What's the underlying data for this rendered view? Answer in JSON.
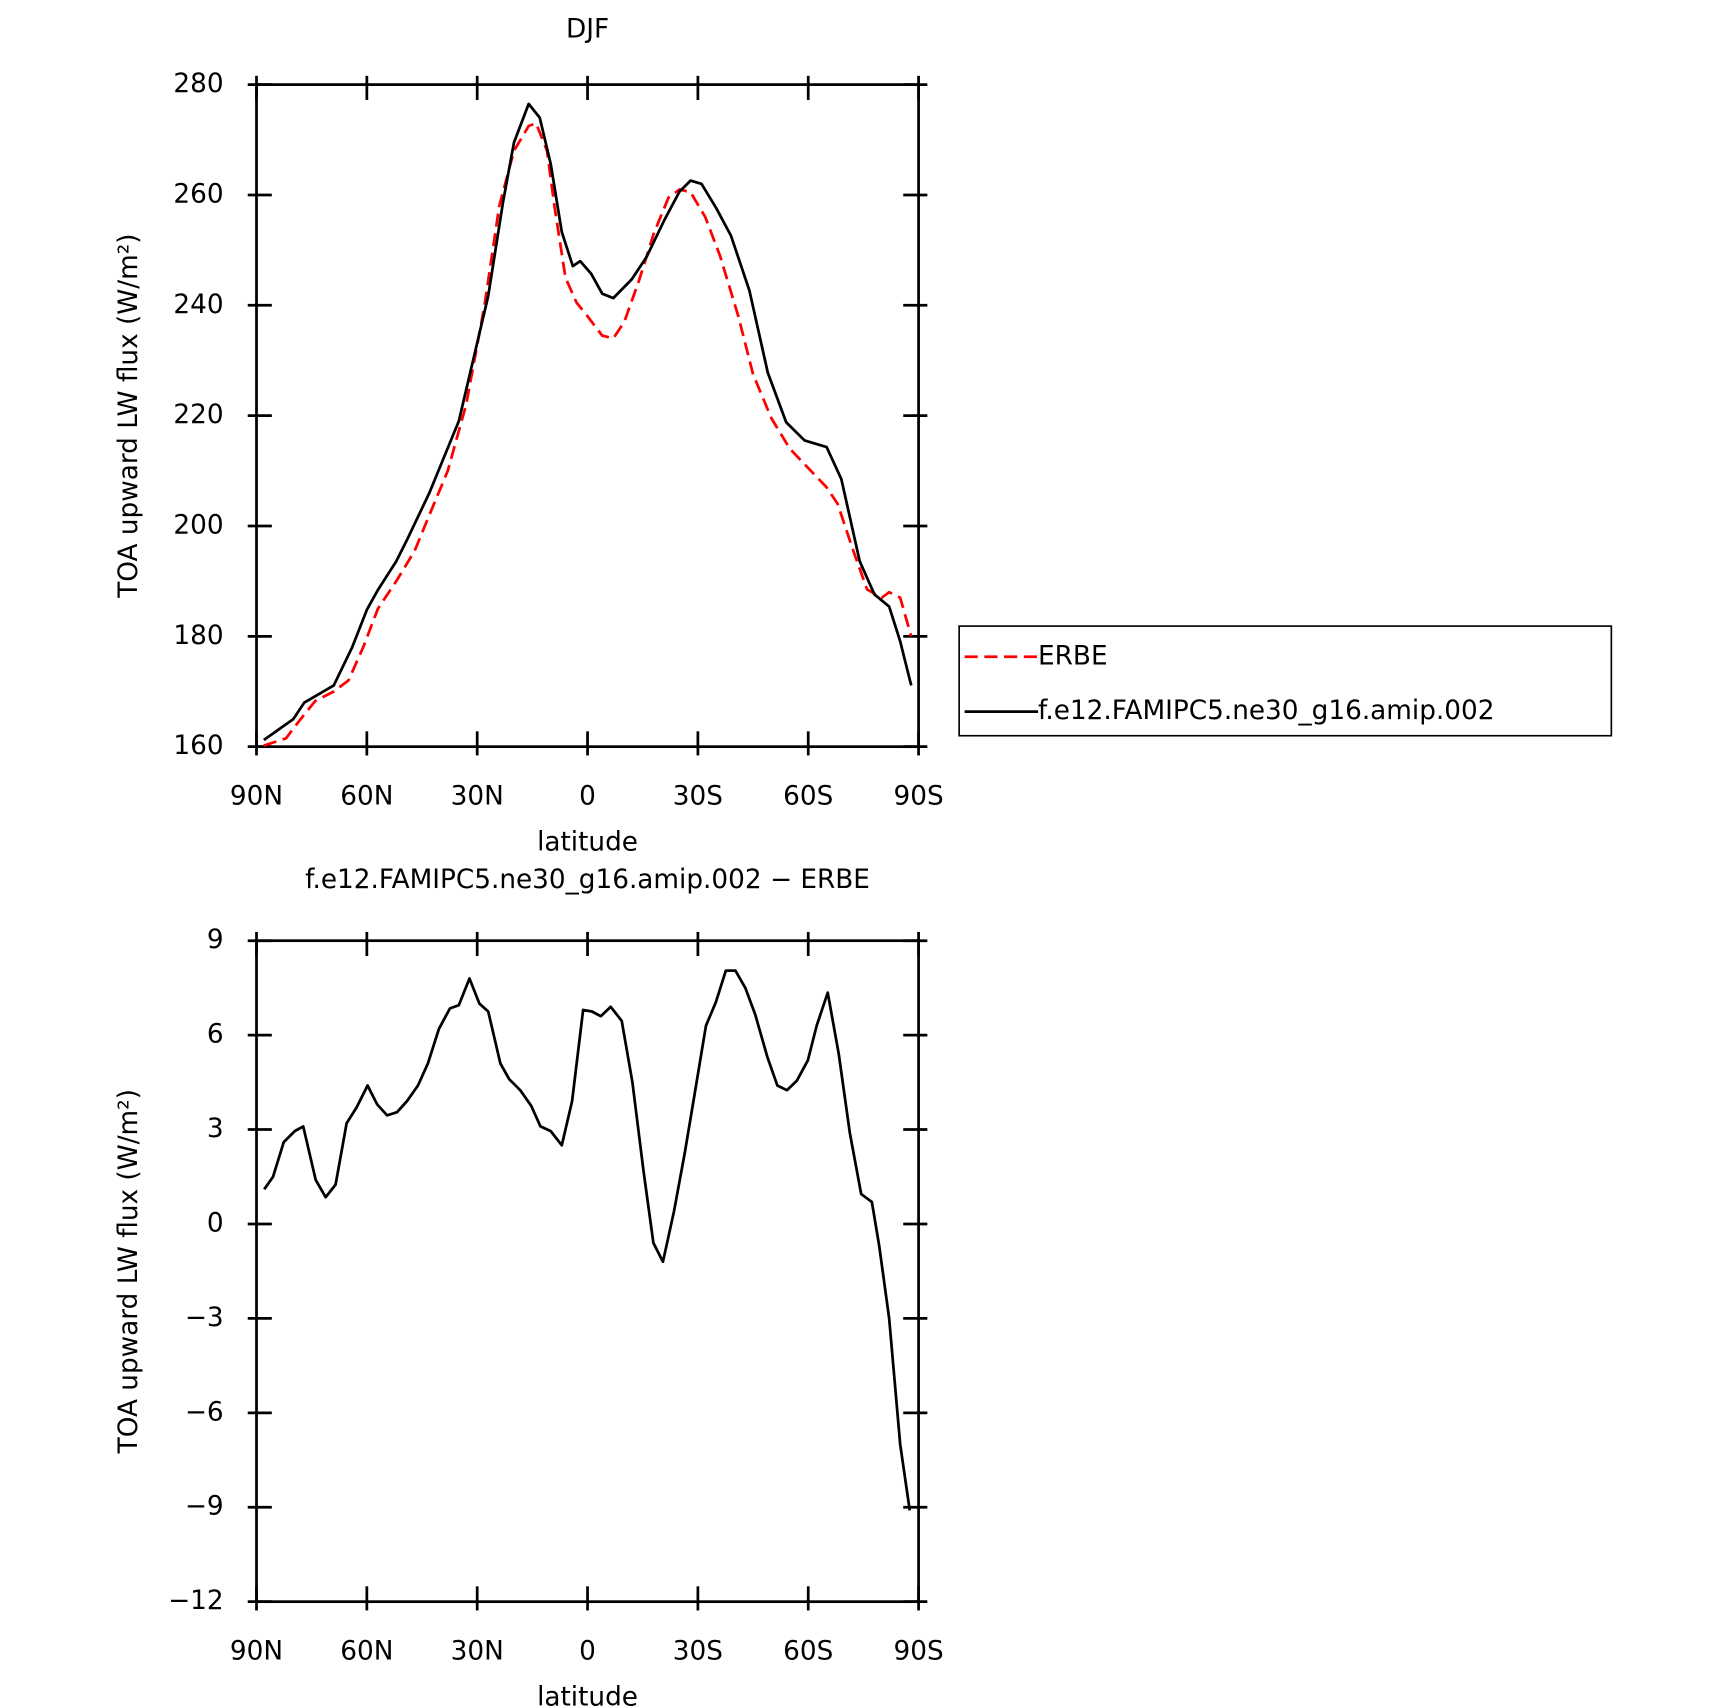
{
  "chart_data": [
    {
      "type": "line",
      "title": "DJF",
      "xlabel": "latitude",
      "ylabel": "TOA upward LW flux (W/m²)",
      "xlim": [
        90,
        -90
      ],
      "ylim": [
        160,
        280
      ],
      "xticks": [
        {
          "value": 90,
          "label": "90N"
        },
        {
          "value": 60,
          "label": "60N"
        },
        {
          "value": 30,
          "label": "30N"
        },
        0,
        {
          "value": -30,
          "label": "30S"
        },
        {
          "value": -60,
          "label": "60S"
        },
        {
          "value": -90,
          "label": "90S"
        }
      ],
      "yticks": [
        160,
        180,
        200,
        220,
        240,
        260,
        280
      ],
      "legend": "right",
      "series": [
        {
          "name": "ERBE",
          "color": "#ff0000",
          "style": "dashed",
          "x": [
            88,
            82,
            78,
            74,
            69,
            65,
            61,
            57,
            52,
            47,
            43,
            38,
            33,
            28,
            24,
            20,
            16,
            14,
            11,
            9,
            6,
            3,
            0,
            -4,
            -7,
            -10,
            -14,
            -18,
            -22,
            -25,
            -28,
            -32,
            -36,
            -41,
            -45,
            -50,
            -55,
            -60,
            -65,
            -68,
            -72,
            -76,
            -80,
            -82,
            -85,
            -88
          ],
          "values": [
            160.2,
            161.5,
            165,
            168.3,
            170,
            172,
            178,
            185,
            190,
            195.5,
            202,
            210,
            222,
            240,
            258,
            268,
            272.5,
            273,
            268,
            258,
            245,
            240.5,
            238,
            234.5,
            234,
            237,
            244.5,
            253,
            259.5,
            261,
            260.5,
            256,
            249,
            238,
            227.5,
            219.5,
            214,
            210.5,
            207,
            204,
            196,
            188.5,
            187,
            188,
            187,
            180
          ]
        },
        {
          "name": "f.e12.FAMIPC5.ne30_g16.amip.002",
          "color": "#000000",
          "style": "solid",
          "x": [
            88,
            80,
            77,
            69,
            64,
            60,
            57,
            52,
            49,
            43,
            35,
            27,
            23,
            20,
            16,
            13,
            10,
            7,
            4,
            2,
            -1,
            -4,
            -7,
            -12,
            -16,
            -21,
            -25,
            -28,
            -31,
            -35,
            -39,
            -44,
            -49,
            -54,
            -59,
            -65,
            -69,
            -74,
            -78,
            -82,
            -85,
            -88
          ],
          "values": [
            161.2,
            165,
            168,
            171.1,
            178,
            184.8,
            188.4,
            193.6,
            197.6,
            206,
            219,
            241.7,
            258.6,
            269.5,
            276.5,
            274,
            265.6,
            253.3,
            247.1,
            248,
            245.7,
            242.1,
            241.3,
            244.7,
            248.7,
            255.6,
            260.6,
            262.6,
            262,
            257.6,
            252.6,
            242.7,
            227.8,
            218.8,
            215.5,
            214.3,
            208.5,
            193.6,
            187.6,
            185.4,
            179.1,
            171.1
          ]
        }
      ]
    },
    {
      "type": "line",
      "title": "f.e12.FAMIPC5.ne30_g16.amip.002 − ERBE",
      "xlabel": "latitude",
      "ylabel": "TOA upward LW flux (W/m²)",
      "xlim": [
        90,
        -90
      ],
      "ylim": [
        -12,
        9
      ],
      "xticks": [
        {
          "value": 90,
          "label": "90N"
        },
        {
          "value": 60,
          "label": "60N"
        },
        {
          "value": 30,
          "label": "30N"
        },
        0,
        {
          "value": -30,
          "label": "30S"
        },
        {
          "value": -60,
          "label": "60S"
        },
        {
          "value": -90,
          "label": "90S"
        }
      ],
      "yticks": [
        {
          "value": -12,
          "label": "−12"
        },
        {
          "value": -9,
          "label": "−9"
        },
        {
          "value": -6,
          "label": "−6"
        },
        {
          "value": -3,
          "label": "−3"
        },
        0,
        3,
        6,
        9
      ],
      "series": [
        {
          "color": "#000000",
          "style": "solid",
          "x": [
            87.9,
            85.5,
            82.6,
            79.6,
            77.3,
            73.9,
            71.2,
            68.5,
            65.5,
            62.8,
            59.8,
            57.2,
            54.5,
            51.8,
            49.1,
            46.1,
            43.4,
            40.4,
            37.4,
            35.0,
            32.1,
            29.4,
            27.0,
            23.7,
            21.3,
            18.3,
            15.3,
            12.8,
            10.0,
            7.0,
            4.2,
            1.2,
            -1.2,
            -3.6,
            -6.3,
            -9.3,
            -12.2,
            -15.2,
            -17.9,
            -20.5,
            -23.5,
            -26.5,
            -29.5,
            -32.2,
            -34.9,
            -37.6,
            -40.2,
            -42.9,
            -45.6,
            -48.9,
            -51.6,
            -54.2,
            -56.9,
            -59.9,
            -62.3,
            -65.3,
            -68.3,
            -71.3,
            -74.4,
            -77.3,
            -79.3,
            -82.0,
            -85.0,
            -87.6
          ],
          "values": [
            1.1,
            1.5,
            2.6,
            2.95,
            3.1,
            1.4,
            0.85,
            1.25,
            3.2,
            3.7,
            4.4,
            3.8,
            3.45,
            3.55,
            3.9,
            4.4,
            5.1,
            6.2,
            6.85,
            6.95,
            7.8,
            7.0,
            6.75,
            5.1,
            4.6,
            4.25,
            3.75,
            3.1,
            2.95,
            2.5,
            3.9,
            6.8,
            6.75,
            6.6,
            6.9,
            6.45,
            4.5,
            1.7,
            -0.6,
            -1.2,
            0.4,
            2.3,
            4.4,
            6.3,
            7.05,
            8.05,
            8.05,
            7.5,
            6.65,
            5.3,
            4.4,
            4.25,
            4.55,
            5.2,
            6.3,
            7.35,
            5.4,
            2.9,
            0.95,
            0.7,
            -0.7,
            -3.0,
            -7.0,
            -9.1
          ]
        }
      ]
    }
  ]
}
